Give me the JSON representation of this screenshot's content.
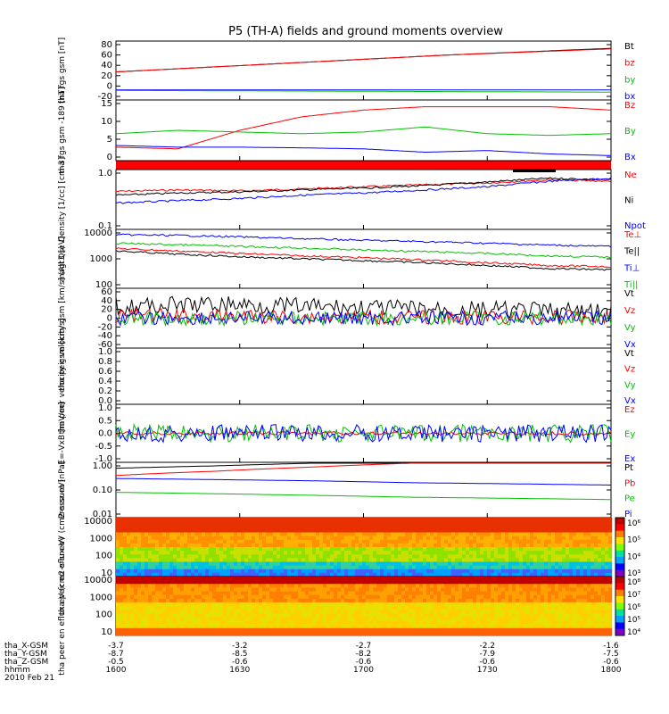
{
  "title": "P5 (TH-A) fields and ground moments overview",
  "chart_data": [
    {
      "type": "line",
      "ylabel": "tha fgs gsm [nT]",
      "yticks": [
        "80",
        "60",
        "40",
        "20",
        "0",
        "-20"
      ],
      "ylim": [
        -20,
        85
      ],
      "x_start": "16:00",
      "x_end": "18:00",
      "series": [
        {
          "name": "Bt",
          "color": "#000000",
          "values": [
            30,
            45,
            60,
            72
          ]
        },
        {
          "name": "bz",
          "color": "#ff0000",
          "values": [
            30,
            45,
            60,
            71
          ]
        },
        {
          "name": "by",
          "color": "#00c000",
          "values": [
            -3,
            -4,
            -5,
            -6
          ]
        },
        {
          "name": "bx",
          "color": "#0000ff",
          "values": [
            -2,
            -2,
            -2,
            -2
          ]
        }
      ]
    },
    {
      "type": "line",
      "ylabel": "tha fgs gsm -189 [nT]",
      "yticks": [
        "15",
        "10",
        "5",
        "0"
      ],
      "ylim": [
        -1,
        17
      ],
      "series": [
        {
          "name": "Bz",
          "color": "#ff0000",
          "values": [
            3,
            2.5,
            8,
            12,
            14,
            15,
            15,
            15,
            14
          ]
        },
        {
          "name": "By",
          "color": "#00c000",
          "values": [
            7,
            8,
            7.5,
            7,
            7.5,
            9,
            7,
            6.5,
            7
          ]
        },
        {
          "name": "Bx",
          "color": "#0000ff",
          "values": [
            3.5,
            3,
            3,
            2.8,
            2.5,
            1.5,
            2,
            1,
            0.5
          ]
        }
      ]
    },
    {
      "type": "line",
      "ylabel": "Density [1/cc] [cm-3]",
      "yticks": [
        "1.0",
        "0.1"
      ],
      "log": true,
      "series": [
        {
          "name": "Ne",
          "color": "#ff0000",
          "values": [
            0.45,
            0.48,
            0.46,
            0.5,
            0.55,
            0.6,
            0.65,
            0.75,
            0.7
          ]
        },
        {
          "name": "Ni",
          "color": "#000000",
          "values": [
            0.38,
            0.42,
            0.44,
            0.48,
            0.52,
            0.58,
            0.68,
            0.8,
            0.75
          ]
        },
        {
          "name": "Npot",
          "color": "#0000ff",
          "values": [
            0.27,
            0.3,
            0.33,
            0.38,
            0.42,
            0.48,
            0.55,
            0.7,
            0.8
          ]
        }
      ]
    },
    {
      "type": "line",
      "ylabel": "magt3 [eV]",
      "yticks": [
        "10000",
        "1000",
        "100"
      ],
      "log": true,
      "series": [
        {
          "name": "Te⊥",
          "color": "#ff0000",
          "values": [
            2500,
            2000,
            1600,
            1300,
            1100,
            900,
            700,
            550,
            500
          ]
        },
        {
          "name": "Te||",
          "color": "#000000",
          "values": [
            2000,
            1500,
            1200,
            1000,
            850,
            700,
            550,
            420,
            380
          ]
        },
        {
          "name": "Ti⊥",
          "color": "#0000ff",
          "values": [
            8500,
            8000,
            7000,
            6000,
            5200,
            4600,
            4000,
            3400,
            3000
          ]
        },
        {
          "name": "Ti||",
          "color": "#00c000",
          "values": [
            4000,
            3500,
            3000,
            2600,
            2200,
            1900,
            1600,
            1300,
            1150
          ]
        }
      ]
    },
    {
      "type": "line",
      "ylabel": "tha peir velocity gsm [km/s] (All Qs)",
      "yticks": [
        "60",
        "40",
        "20",
        "0",
        "-20",
        "-40",
        "-60"
      ],
      "ylim": [
        -65,
        65
      ],
      "series": [
        {
          "name": "Vt",
          "color": "#000000",
          "values": [
            25,
            28,
            30,
            25,
            22,
            20,
            18,
            15,
            12
          ]
        },
        {
          "name": "Vz",
          "color": "#ff0000",
          "values": [
            5,
            5,
            4,
            3,
            2,
            2,
            2,
            2,
            2
          ]
        },
        {
          "name": "Vy",
          "color": "#00c000",
          "values": [
            0,
            0,
            0,
            0,
            0,
            0,
            0,
            0,
            0
          ]
        },
        {
          "name": "Vx",
          "color": "#0000ff",
          "values": [
            0,
            0,
            0,
            0,
            0,
            0,
            0,
            0,
            0
          ]
        }
      ]
    },
    {
      "type": "line",
      "ylabel": "tha peer velocity gsm [km/s]",
      "yticks": [
        "1.0",
        "0.8",
        "0.6",
        "0.4",
        "0.2",
        "0.0"
      ],
      "ylim": [
        0,
        1
      ],
      "series": [
        {
          "name": "Vt",
          "color": "#000000",
          "values": []
        },
        {
          "name": "Vz",
          "color": "#ff0000",
          "values": []
        },
        {
          "name": "Vy",
          "color": "#00c000",
          "values": []
        },
        {
          "name": "Vx",
          "color": "#0000ff",
          "values": []
        }
      ]
    },
    {
      "type": "line",
      "ylabel": "E=-VxB [mV/m]",
      "yticks": [
        "1.0",
        "0.5",
        "0.0",
        "-0.5",
        "-1.0"
      ],
      "ylim": [
        -1.5,
        1.5
      ],
      "series": [
        {
          "name": "Ez",
          "color": "#ff0000",
          "values": [
            0,
            0,
            0,
            0,
            0,
            0,
            0,
            0,
            0
          ]
        },
        {
          "name": "Ey",
          "color": "#00c000",
          "values": [
            0,
            0,
            0,
            0,
            0,
            0,
            0,
            0,
            0
          ]
        },
        {
          "name": "Ex",
          "color": "#0000ff",
          "values": [
            0,
            0,
            0,
            0,
            0,
            0,
            0,
            0,
            0
          ]
        }
      ]
    },
    {
      "type": "line",
      "ylabel": "Pressure [nPa]",
      "yticks": [
        "1.00",
        "0.10",
        "0.01"
      ],
      "log": true,
      "series": [
        {
          "name": "Pt",
          "color": "#000000",
          "values": [
            0.8,
            1.0,
            1.3,
            1.7,
            2.0,
            2.4
          ]
        },
        {
          "name": "Pb",
          "color": "#ff0000",
          "values": [
            0.4,
            0.6,
            0.9,
            1.3,
            1.8,
            2.2
          ]
        },
        {
          "name": "Pe",
          "color": "#00c000",
          "values": [
            0.08,
            0.07,
            0.06,
            0.05,
            0.045,
            0.04
          ]
        },
        {
          "name": "Pi",
          "color": "#0000ff",
          "values": [
            0.3,
            0.27,
            0.24,
            0.2,
            0.18,
            0.16
          ]
        }
      ]
    },
    {
      "type": "heatmap",
      "ylabel": "tha peir en eflux eV (cm2-s-sr-eV)",
      "yticks": [
        "10000",
        "1000",
        "100",
        "10"
      ],
      "colorbar_ticks": [
        "10⁶",
        "10⁵",
        "10⁴",
        "10³"
      ]
    },
    {
      "type": "heatmap",
      "ylabel": "tha peer en eflux eV (cm2-s-sr-eV)",
      "yticks": [
        "10000",
        "1000",
        "100",
        "10"
      ],
      "colorbar_ticks": [
        "10⁸",
        "10⁷",
        "10⁶",
        "10⁵",
        "10⁴"
      ]
    }
  ],
  "xaxis": {
    "rows": [
      {
        "label": "tha_X-GSM",
        "values": [
          "-3.7",
          "-3.2",
          "-2.7",
          "-2.2",
          "-1.6"
        ]
      },
      {
        "label": "tha_Y-GSM",
        "values": [
          "-8.7",
          "-8.5",
          "-8.2",
          "-7.9",
          "-7.5"
        ]
      },
      {
        "label": "tha_Z-GSM",
        "values": [
          "-0.5",
          "-0.6",
          "-0.6",
          "-0.6",
          "-0.6"
        ]
      },
      {
        "label": "hhmm",
        "values": [
          "1600",
          "1630",
          "1700",
          "1730",
          "1800"
        ]
      }
    ],
    "date": "2010 Feb 21"
  }
}
